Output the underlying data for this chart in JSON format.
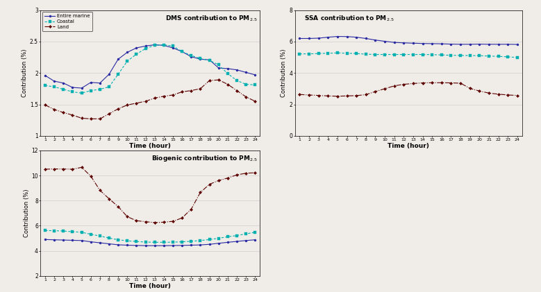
{
  "hours": [
    1,
    2,
    3,
    4,
    5,
    6,
    7,
    8,
    9,
    10,
    11,
    12,
    13,
    14,
    15,
    16,
    17,
    18,
    19,
    20,
    21,
    22,
    23,
    24
  ],
  "dms_entire": [
    1.96,
    1.87,
    1.84,
    1.77,
    1.76,
    1.85,
    1.84,
    1.98,
    2.22,
    2.33,
    2.4,
    2.43,
    2.45,
    2.44,
    2.4,
    2.34,
    2.26,
    2.22,
    2.21,
    2.08,
    2.07,
    2.05,
    2.01,
    1.97
  ],
  "dms_coastal": [
    1.8,
    1.78,
    1.74,
    1.7,
    1.68,
    1.72,
    1.74,
    1.78,
    1.98,
    2.19,
    2.3,
    2.39,
    2.44,
    2.45,
    2.43,
    2.34,
    2.28,
    2.23,
    2.2,
    2.13,
    1.99,
    1.88,
    1.82,
    1.81
  ],
  "dms_land": [
    1.49,
    1.42,
    1.37,
    1.33,
    1.28,
    1.27,
    1.27,
    1.35,
    1.43,
    1.49,
    1.52,
    1.55,
    1.6,
    1.63,
    1.65,
    1.7,
    1.72,
    1.75,
    1.88,
    1.89,
    1.82,
    1.72,
    1.62,
    1.55
  ],
  "ssa_entire": [
    6.2,
    6.2,
    6.22,
    6.28,
    6.33,
    6.32,
    6.28,
    6.2,
    6.1,
    6.02,
    5.95,
    5.92,
    5.9,
    5.88,
    5.87,
    5.86,
    5.84,
    5.83,
    5.83,
    5.84,
    5.83,
    5.83,
    5.83,
    5.82
  ],
  "ssa_coastal": [
    5.22,
    5.22,
    5.24,
    5.26,
    5.28,
    5.26,
    5.24,
    5.2,
    5.18,
    5.18,
    5.18,
    5.18,
    5.18,
    5.18,
    5.17,
    5.15,
    5.13,
    5.12,
    5.11,
    5.1,
    5.08,
    5.06,
    5.03,
    4.99
  ],
  "ssa_land": [
    2.63,
    2.6,
    2.57,
    2.54,
    2.52,
    2.54,
    2.56,
    2.62,
    2.82,
    3.0,
    3.18,
    3.28,
    3.33,
    3.37,
    3.38,
    3.38,
    3.37,
    3.35,
    3.02,
    2.85,
    2.72,
    2.65,
    2.6,
    2.57
  ],
  "bio_entire": [
    4.9,
    4.88,
    4.86,
    4.84,
    4.82,
    4.72,
    4.64,
    4.56,
    4.48,
    4.45,
    4.43,
    4.41,
    4.41,
    4.41,
    4.42,
    4.43,
    4.45,
    4.47,
    4.52,
    4.6,
    4.68,
    4.75,
    4.82,
    4.88
  ],
  "bio_coastal": [
    5.62,
    5.6,
    5.58,
    5.52,
    5.48,
    5.32,
    5.18,
    5.02,
    4.88,
    4.8,
    4.74,
    4.7,
    4.68,
    4.68,
    4.69,
    4.72,
    4.76,
    4.82,
    4.9,
    5.0,
    5.12,
    5.22,
    5.35,
    5.48
  ],
  "bio_land": [
    10.5,
    10.52,
    10.52,
    10.5,
    10.65,
    9.95,
    8.82,
    8.15,
    7.52,
    6.72,
    6.4,
    6.32,
    6.25,
    6.28,
    6.35,
    6.62,
    7.32,
    8.65,
    9.3,
    9.6,
    9.8,
    10.05,
    10.18,
    10.22
  ],
  "color_entire": "#2929a3",
  "color_coastal": "#00b0b0",
  "color_land": "#5c0000",
  "bg_color": "#f0ede8",
  "plot_bg": "#f0ede8",
  "dms_ylim": [
    1.0,
    3.0
  ],
  "dms_yticks": [
    1.0,
    1.5,
    2.0,
    2.5,
    3.0
  ],
  "ssa_ylim": [
    0,
    8
  ],
  "ssa_yticks": [
    0,
    2,
    4,
    6,
    8
  ],
  "bio_ylim": [
    2,
    12
  ],
  "bio_yticks": [
    2,
    4,
    6,
    8,
    10,
    12
  ],
  "xlabel": "Time (hour)",
  "ylabel": "Contribution (%)",
  "legend_entire": "Entire marine",
  "legend_coastal": "Coastal",
  "legend_land": "Land"
}
